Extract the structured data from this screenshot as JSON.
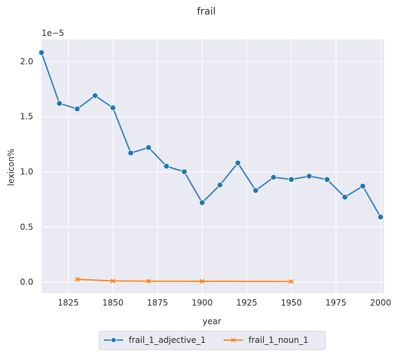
{
  "chart_data": {
    "type": "line",
    "title": "frail",
    "xlabel": "year",
    "ylabel": "lexicon%",
    "y_scale_label": "1e−5",
    "xlim": [
      1810,
      2002
    ],
    "ylim": [
      -0.1,
      2.2
    ],
    "x_ticks": [
      1825,
      1850,
      1875,
      1900,
      1925,
      1950,
      1975,
      2000
    ],
    "y_ticks": [
      0.0,
      0.5,
      1.0,
      1.5,
      2.0
    ],
    "y_tick_labels": [
      "0.0",
      "0.5",
      "1.0",
      "1.5",
      "2.0"
    ],
    "grid": true,
    "legend_position": "bottom-center",
    "series": [
      {
        "name": "frail_1_adjective_1",
        "color": "#1f77b4",
        "marker": "circle",
        "x": [
          1810,
          1820,
          1830,
          1840,
          1850,
          1860,
          1870,
          1880,
          1890,
          1900,
          1910,
          1920,
          1930,
          1940,
          1950,
          1960,
          1970,
          1980,
          1990,
          2000
        ],
        "y": [
          2.08,
          1.62,
          1.57,
          1.69,
          1.58,
          1.17,
          1.22,
          1.05,
          1.0,
          0.72,
          0.88,
          1.08,
          0.83,
          0.95,
          0.93,
          0.96,
          0.93,
          0.77,
          0.87,
          0.59
        ]
      },
      {
        "name": "frail_1_noun_1",
        "color": "#ff7f0e",
        "marker": "x",
        "x": [
          1830,
          1850,
          1870,
          1900,
          1950
        ],
        "y": [
          0.025,
          0.01,
          0.008,
          0.007,
          0.005
        ]
      }
    ]
  }
}
